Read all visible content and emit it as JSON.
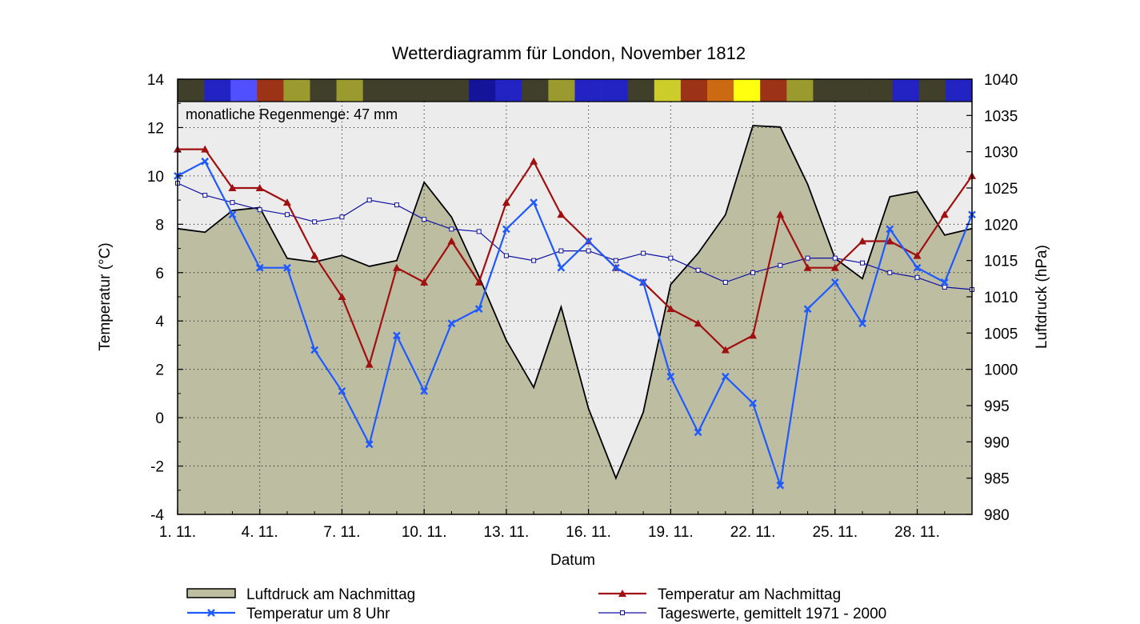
{
  "chart_data": {
    "type": "line",
    "title": "Wetterdiagramm für London, November 1812",
    "xlabel": "Datum",
    "ylabel_left": "Temperatur (°C)",
    "ylabel_right": "Luftdruck (hPa)",
    "annotation": "monatliche Regenmenge: 47 mm",
    "x": [
      1,
      2,
      3,
      4,
      5,
      6,
      7,
      8,
      9,
      10,
      11,
      12,
      13,
      14,
      15,
      16,
      17,
      18,
      19,
      20,
      21,
      22,
      23,
      24,
      25,
      26,
      27,
      28,
      29,
      30
    ],
    "x_range": [
      1,
      30
    ],
    "x_tick_values": [
      1,
      4,
      7,
      10,
      13,
      16,
      19,
      22,
      25,
      28
    ],
    "x_tick_labels": [
      "1. 11.",
      "4. 11.",
      "7. 11.",
      "10. 11.",
      "13. 11.",
      "16. 11.",
      "19. 11.",
      "22. 11.",
      "25. 11.",
      "28. 11."
    ],
    "y_left_range": [
      -4,
      14
    ],
    "y_left_ticks": [
      -4,
      -2,
      0,
      2,
      4,
      6,
      8,
      10,
      12,
      14
    ],
    "y_right_range": [
      980,
      1040
    ],
    "y_right_ticks": [
      980,
      985,
      990,
      995,
      1000,
      1005,
      1010,
      1015,
      1020,
      1025,
      1030,
      1035,
      1040
    ],
    "grid": true,
    "legend_position": "bottom",
    "series": [
      {
        "name": "Luftdruck am Nachmittag",
        "type": "area",
        "axis": "right",
        "color": "#bdbda2",
        "values": [
          1019.4,
          1018.9,
          1021.9,
          1022.3,
          1015.3,
          1014.8,
          1015.7,
          1014.2,
          1015.0,
          1025.8,
          1021.0,
          1012.8,
          1004.0,
          997.5,
          1008.6,
          994.6,
          985.0,
          994.1,
          1011.7,
          1016.0,
          1021.3,
          1033.6,
          1033.4,
          1025.5,
          1015.3,
          1012.5,
          1023.8,
          1024.5,
          1018.5,
          1019.4
        ]
      },
      {
        "name": "Temperatur am Nachmittag",
        "type": "line",
        "axis": "left",
        "color": "#a01010",
        "marker": "triangle",
        "values": [
          11.1,
          11.1,
          9.5,
          9.5,
          8.9,
          6.7,
          5.0,
          2.2,
          6.2,
          5.6,
          7.3,
          5.6,
          8.9,
          10.6,
          8.4,
          7.3,
          6.2,
          5.6,
          4.5,
          3.9,
          2.8,
          3.4,
          8.4,
          6.2,
          6.2,
          7.3,
          7.3,
          6.7,
          8.4,
          10.0
        ]
      },
      {
        "name": "Temperatur um 8 Uhr",
        "type": "line",
        "axis": "left",
        "color": "#1e5aff",
        "marker": "x",
        "values": [
          10.0,
          10.6,
          8.4,
          6.2,
          6.2,
          2.8,
          1.1,
          -1.1,
          3.4,
          1.1,
          3.9,
          4.5,
          7.8,
          8.9,
          6.2,
          7.3,
          6.2,
          5.6,
          1.7,
          -0.6,
          1.7,
          0.6,
          -2.8,
          4.5,
          5.6,
          3.9,
          7.8,
          6.2,
          5.6,
          8.4
        ]
      },
      {
        "name": "Tageswerte, gemittelt 1971 - 2000",
        "type": "line",
        "axis": "left",
        "color": "#1010a0",
        "marker": "square",
        "values": [
          9.7,
          9.2,
          8.9,
          8.6,
          8.4,
          8.1,
          8.3,
          9.0,
          8.8,
          8.2,
          7.8,
          7.7,
          6.7,
          6.5,
          6.9,
          6.9,
          6.5,
          6.8,
          6.6,
          6.1,
          5.6,
          6.0,
          6.3,
          6.6,
          6.6,
          6.4,
          6.0,
          5.8,
          5.4,
          5.3
        ]
      }
    ],
    "weather_strip_colors": [
      "#3f3f2a",
      "#2323c4",
      "#5050ff",
      "#9c3316",
      "#9a9a2e",
      "#3f3f2a",
      "#9a9a2e",
      "#3f3f2a",
      "#3f3f2a",
      "#3f3f2a",
      "#3f3f2a",
      "#14149a",
      "#2323c4",
      "#3f3f2a",
      "#9a9a2e",
      "#2323c4",
      "#2323c4",
      "#3f3f2a",
      "#cccc2a",
      "#9c3316",
      "#cc6a14",
      "#ffff10",
      "#9c3316",
      "#9a9a2e",
      "#3f3f2a",
      "#3f3f2a",
      "#3f3f2a",
      "#2323c4",
      "#3f3f2a",
      "#2323c4"
    ]
  }
}
